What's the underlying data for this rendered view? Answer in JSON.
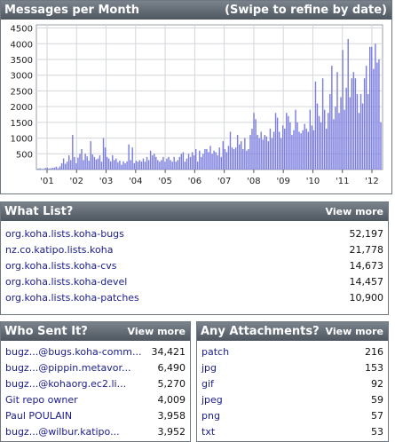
{
  "messages_panel": {
    "title": "Messages per Month",
    "hint": "(Swipe to refine by date)"
  },
  "chart_data": {
    "type": "bar",
    "title": "Messages per Month",
    "y_ticks": [
      500,
      1000,
      1500,
      2000,
      2500,
      3000,
      3500,
      4000,
      4500
    ],
    "x_ticks": [
      "'01",
      "'02",
      "'03",
      "'04",
      "'05",
      "'06",
      "'07",
      "'08",
      "'09",
      "'10",
      "'11",
      "'12"
    ],
    "ylim": [
      0,
      4600
    ],
    "grid": true,
    "bar_color": "#7b7de0",
    "values": [
      30,
      40,
      20,
      20,
      50,
      60,
      30,
      40,
      50,
      60,
      90,
      40,
      100,
      200,
      350,
      180,
      250,
      450,
      300,
      1100,
      400,
      200,
      380,
      500,
      650,
      300,
      500,
      420,
      280,
      900,
      480,
      400,
      320,
      350,
      450,
      250,
      1000,
      700,
      400,
      350,
      260,
      450,
      300,
      350,
      230,
      280,
      150,
      260,
      200,
      260,
      800,
      300,
      700,
      200,
      280,
      250,
      300,
      250,
      350,
      250,
      400,
      300,
      600,
      450,
      500,
      400,
      300,
      250,
      300,
      400,
      250,
      350,
      400,
      300,
      250,
      400,
      250,
      300,
      400,
      500,
      550,
      250,
      350,
      500,
      400,
      550,
      450,
      650,
      250,
      600,
      400,
      500,
      650,
      650,
      550,
      750,
      500,
      600,
      550,
      450,
      700,
      400,
      900,
      650,
      550,
      750,
      1200,
      700,
      650,
      700,
      1100,
      800,
      900,
      650,
      1000,
      600,
      650,
      1100,
      1300,
      1800,
      1600,
      1100,
      1000,
      1200,
      950,
      1100,
      1050,
      900,
      1300,
      1000,
      1200,
      1800,
      1650,
      1200,
      1000,
      1400,
      1300,
      1800,
      1700,
      1500,
      1100,
      1250,
      1900,
      1500,
      1200,
      1150,
      1250,
      1450,
      1300,
      1200,
      1900,
      1400,
      1250,
      2800,
      2100,
      1700,
      1500,
      2900,
      1900,
      1300,
      1800,
      2400,
      3300,
      1600,
      2000,
      3100,
      1800,
      2300,
      3800,
      1900,
      2600,
      4150,
      2300,
      2900,
      3100,
      2900,
      2400,
      1800,
      2400,
      2100,
      2900,
      3300,
      2400,
      3900,
      3900,
      3200,
      4000,
      3400,
      3500,
      1500
    ]
  },
  "what_list": {
    "title": "What List?",
    "view_more": "View more",
    "items": [
      {
        "name": "org.koha.lists.koha-bugs",
        "count": "52,197"
      },
      {
        "name": "nz.co.katipo.lists.koha",
        "count": "21,778"
      },
      {
        "name": "org.koha.lists.koha-cvs",
        "count": "14,673"
      },
      {
        "name": "org.koha.lists.koha-devel",
        "count": "14,457"
      },
      {
        "name": "org.koha.lists.koha-patches",
        "count": "10,900"
      }
    ]
  },
  "who_sent": {
    "title": "Who Sent It?",
    "view_more": "View more",
    "items": [
      {
        "name": "bugz...@bugs.koha-comm...",
        "count": "34,421"
      },
      {
        "name": "bugz...@pippin.metavor...",
        "count": "6,490"
      },
      {
        "name": "bugz...@kohaorg.ec2.li...",
        "count": "5,270"
      },
      {
        "name": "Git repo owner",
        "count": "4,009"
      },
      {
        "name": "Paul POULAIN",
        "count": "3,958"
      },
      {
        "name": "bugz...@wilbur.katipo...",
        "count": "3,952"
      }
    ]
  },
  "attachments": {
    "title": "Any Attachments?",
    "view_more": "View more",
    "items": [
      {
        "name": "patch",
        "count": "216"
      },
      {
        "name": "jpg",
        "count": "153"
      },
      {
        "name": "gif",
        "count": "92"
      },
      {
        "name": "jpeg",
        "count": "59"
      },
      {
        "name": "png",
        "count": "57"
      },
      {
        "name": "txt",
        "count": "53"
      }
    ]
  }
}
